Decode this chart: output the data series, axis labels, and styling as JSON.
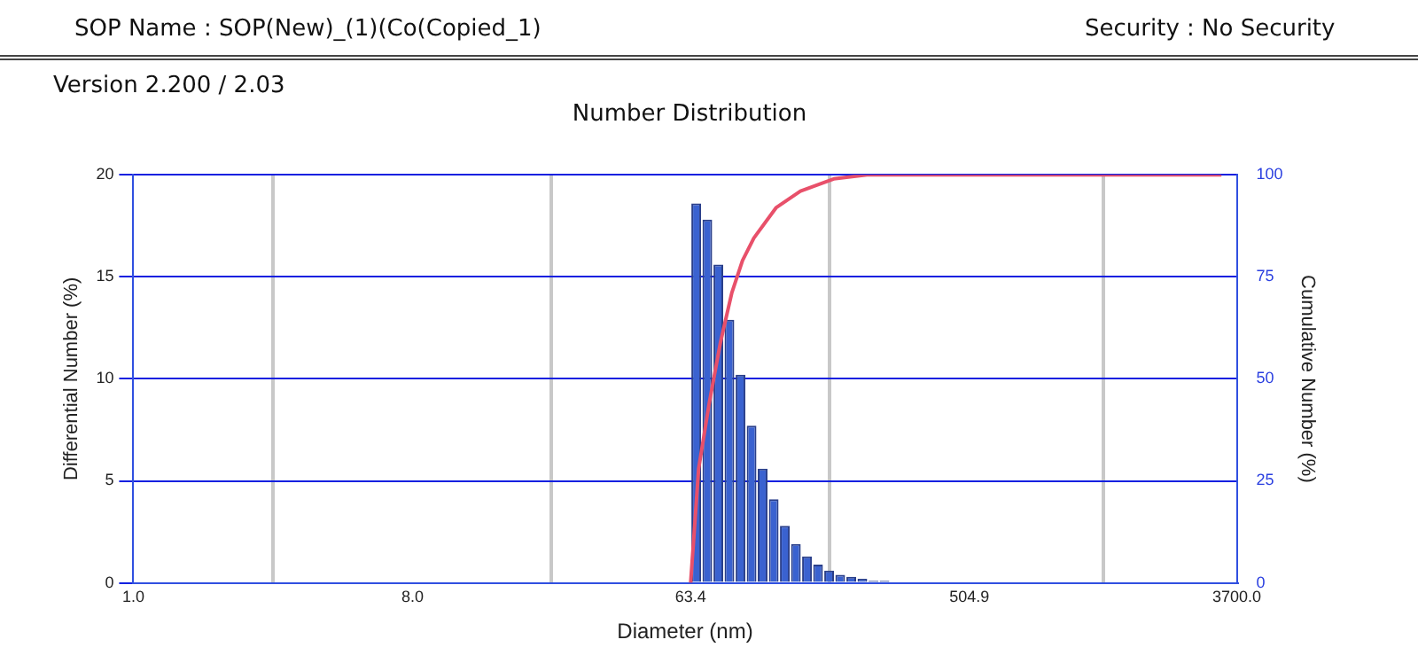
{
  "chart_data": {
    "type": "histogram",
    "title": "Number Distribution",
    "xlabel": "Diameter (nm)",
    "ylabel": "Differential Number (%)",
    "y2label": "Cumulative Number (%)",
    "annotations": [
      "SOP Name : SOP(New)_(1)(Co(Copied_1)",
      "Security : No Security",
      "Version 2.200 / 2.03"
    ],
    "log": "x",
    "grid": true,
    "legend": false,
    "xlim": [
      1,
      3700
    ],
    "xticks": [
      {
        "value": 1,
        "label": "1.0"
      },
      {
        "value": 8,
        "label": "8.0"
      },
      63.4,
      504.9,
      {
        "value": 3700,
        "label": "3700.0"
      }
    ],
    "ylim": [
      0,
      20
    ],
    "yticks": [
      0,
      5,
      10,
      15,
      20
    ],
    "y2lim": [
      0,
      100
    ],
    "y2ticks": [
      0,
      25,
      50,
      75,
      100
    ],
    "series": [
      {
        "type": "histogram",
        "color": "#3a62d0",
        "bins": [
          63.4,
          68.9,
          74.8,
          81.2,
          88.2,
          95.8,
          104.0,
          112.9,
          122.7,
          133.2,
          144.7,
          157.1,
          170.6,
          185.3,
          201.2,
          218.5,
          237.3,
          257.7,
          279.9
        ],
        "values": [
          18.6,
          17.8,
          15.6,
          12.9,
          10.2,
          7.7,
          5.6,
          4.1,
          2.8,
          1.9,
          1.3,
          0.9,
          0.6,
          0.4,
          0.3,
          0.2,
          0.1,
          0.1
        ]
      },
      {
        "type": "line",
        "axis": "y2",
        "color": "#e8506a",
        "x": [
          63.4,
          67.3,
          72.8,
          79.2,
          86.1,
          93.3,
          101.5,
          120,
          143.6,
          184,
          235.6,
          3300
        ],
        "values": [
          0,
          28,
          44,
          59,
          71,
          79,
          84.5,
          92,
          96,
          99,
          100,
          100
        ]
      }
    ]
  }
}
